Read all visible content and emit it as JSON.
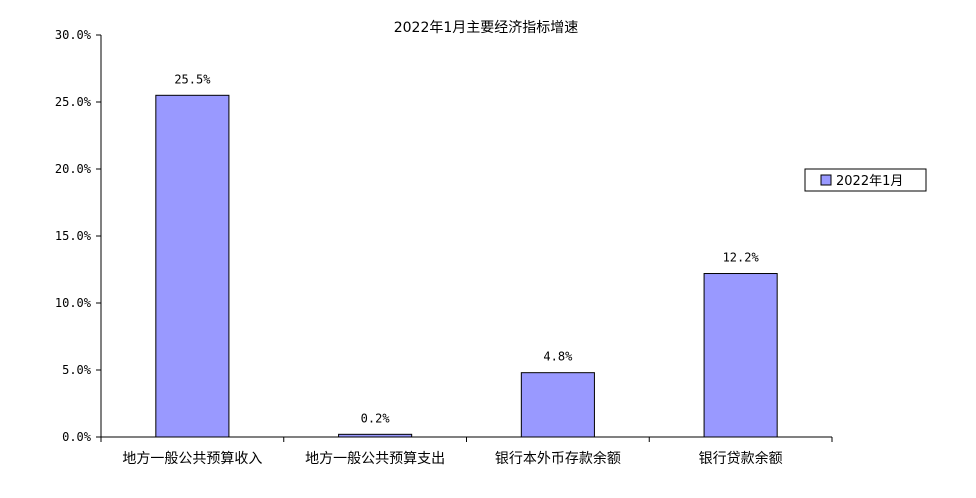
{
  "chart_data": {
    "type": "bar",
    "title": "2022年1月主要经济指标增速",
    "xlabel": "",
    "ylabel": "",
    "categories": [
      "地方一般公共预算收入",
      "地方一般公共预算支出",
      "银行本外币存款余额",
      "银行贷款余额"
    ],
    "series": [
      {
        "name": "2022年1月",
        "values": [
          25.5,
          0.2,
          4.8,
          12.2
        ],
        "labels": [
          "25.5%",
          "0.2%",
          "4.8%",
          "12.2%"
        ],
        "color": "#9999ff"
      }
    ],
    "ylim": [
      0,
      30
    ],
    "yticks": [
      {
        "value": 0,
        "label": "0.0%"
      },
      {
        "value": 5,
        "label": "5.0%"
      },
      {
        "value": 10,
        "label": "10.0%"
      },
      {
        "value": 15,
        "label": "15.0%"
      },
      {
        "value": 20,
        "label": "20.0%"
      },
      {
        "value": 25,
        "label": "25.0%"
      },
      {
        "value": 30,
        "label": "30.0%"
      }
    ],
    "grid": false,
    "legend_position": "right"
  }
}
